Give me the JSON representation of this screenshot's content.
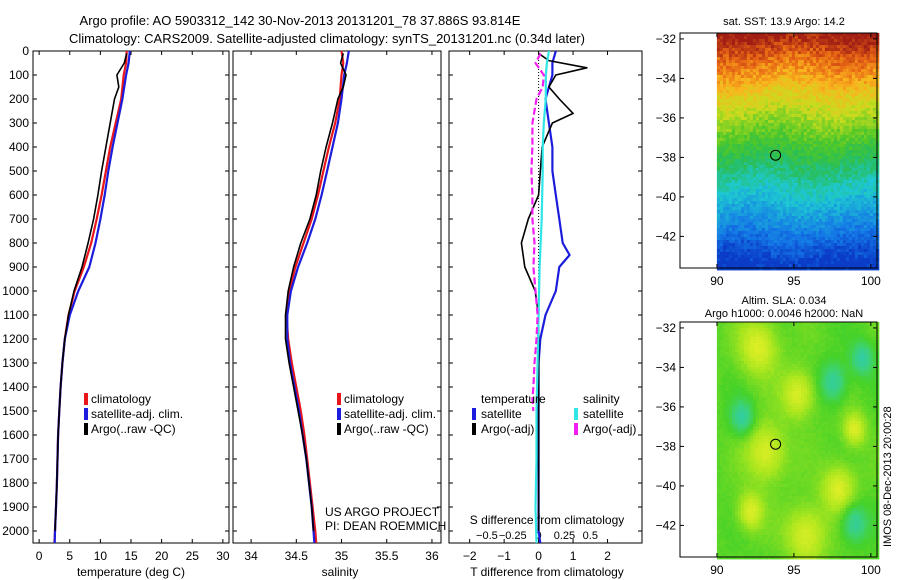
{
  "header": {
    "line1": "Argo profile: AO 5903312_142 30-Nov-2013 20131201_78 37.886S 93.814E",
    "line2": "Climatology: CARS2009. Satellite-adjusted climatology: synTS_20131201.nc (0.34d later)"
  },
  "credit": {
    "line1": "US ARGO PROJECT",
    "line2": "PI: DEAN ROEMMICH"
  },
  "imos_stamp": "IMOS 08-Dec-2013 20:00:28",
  "colors": {
    "climatology": "#e8151b",
    "satellite": "#1c1cdc",
    "argo": "#000000",
    "satellite_salinity": "#2ee6e6",
    "argo_salinity": "#f01ef0"
  },
  "chart_data": [
    {
      "type": "line",
      "name": "temperature-profile",
      "xlabel": "temperature (deg C)",
      "ylabel": "",
      "xlim": [
        -1,
        31
      ],
      "ylim": [
        2050,
        0
      ],
      "xticks": [
        0,
        5,
        10,
        15,
        20,
        25,
        30
      ],
      "yticks": [
        0,
        100,
        200,
        300,
        400,
        500,
        600,
        700,
        800,
        900,
        1000,
        1100,
        1200,
        1300,
        1400,
        1500,
        1600,
        1700,
        1800,
        1900,
        2000
      ],
      "legend": [
        "climatology",
        "satellite-adj. clim.",
        "Argo(..raw -QC)"
      ],
      "legend_position": "lower-right",
      "series": [
        {
          "name": "climatology",
          "color": "#e8151b",
          "points": [
            [
              14.3,
              0
            ],
            [
              14.2,
              50
            ],
            [
              13.8,
              100
            ],
            [
              13.4,
              200
            ],
            [
              12.5,
              300
            ],
            [
              11.6,
              400
            ],
            [
              10.9,
              500
            ],
            [
              10.2,
              600
            ],
            [
              9.4,
              700
            ],
            [
              8.5,
              800
            ],
            [
              7.3,
              900
            ],
            [
              5.8,
              1000
            ],
            [
              4.8,
              1100
            ],
            [
              4.2,
              1200
            ],
            [
              3.8,
              1300
            ],
            [
              3.5,
              1400
            ],
            [
              3.3,
              1500
            ],
            [
              3.1,
              1600
            ],
            [
              3.0,
              1700
            ],
            [
              2.9,
              1800
            ],
            [
              2.75,
              1900
            ],
            [
              2.6,
              2000
            ],
            [
              2.5,
              2050
            ]
          ]
        },
        {
          "name": "satellite-adj. clim.",
          "color": "#1c1cdc",
          "points": [
            [
              14.8,
              0
            ],
            [
              14.6,
              50
            ],
            [
              14.2,
              100
            ],
            [
              13.6,
              200
            ],
            [
              12.8,
              300
            ],
            [
              12.0,
              400
            ],
            [
              11.3,
              500
            ],
            [
              10.7,
              600
            ],
            [
              10.0,
              700
            ],
            [
              9.2,
              800
            ],
            [
              8.2,
              900
            ],
            [
              6.4,
              1000
            ],
            [
              5.0,
              1100
            ],
            [
              4.2,
              1200
            ],
            [
              3.8,
              1300
            ],
            [
              3.5,
              1400
            ],
            [
              3.3,
              1500
            ],
            [
              3.1,
              1600
            ],
            [
              3.0,
              1700
            ],
            [
              2.9,
              1800
            ],
            [
              2.75,
              1900
            ],
            [
              2.6,
              2000
            ],
            [
              2.55,
              2050
            ]
          ]
        },
        {
          "name": "Argo(..raw -QC)",
          "color": "#000000",
          "points": [
            [
              14.3,
              10
            ],
            [
              13.9,
              50
            ],
            [
              12.7,
              100
            ],
            [
              13.0,
              150
            ],
            [
              12.3,
              200
            ],
            [
              11.6,
              300
            ],
            [
              10.9,
              400
            ],
            [
              10.2,
              500
            ],
            [
              9.6,
              600
            ],
            [
              8.9,
              700
            ],
            [
              8.0,
              800
            ],
            [
              7.0,
              900
            ],
            [
              5.7,
              1000
            ],
            [
              4.8,
              1100
            ],
            [
              4.2,
              1200
            ],
            [
              3.8,
              1300
            ],
            [
              3.5,
              1400
            ],
            [
              3.3,
              1500
            ],
            [
              3.1,
              1600
            ],
            [
              3.0,
              1700
            ],
            [
              2.9,
              1800
            ],
            [
              2.75,
              1900
            ],
            [
              2.6,
              2000
            ]
          ]
        }
      ]
    },
    {
      "type": "line",
      "name": "salinity-profile",
      "xlabel": "salinity",
      "ylabel": "",
      "xlim": [
        33.8,
        36.1
      ],
      "ylim": [
        2050,
        0
      ],
      "xticks": [
        34,
        34.5,
        35,
        35.5,
        36
      ],
      "legend": [
        "climatology",
        "satellite-adj. clim.",
        "Argo(..raw -QC)"
      ],
      "legend_position": "lower-right",
      "series": [
        {
          "name": "climatology",
          "color": "#e8151b",
          "points": [
            [
              35.0,
              0
            ],
            [
              35.02,
              50
            ],
            [
              35.0,
              100
            ],
            [
              34.98,
              200
            ],
            [
              34.93,
              300
            ],
            [
              34.86,
              400
            ],
            [
              34.8,
              500
            ],
            [
              34.74,
              600
            ],
            [
              34.67,
              700
            ],
            [
              34.58,
              800
            ],
            [
              34.49,
              900
            ],
            [
              34.42,
              1000
            ],
            [
              34.39,
              1100
            ],
            [
              34.41,
              1200
            ],
            [
              34.45,
              1300
            ],
            [
              34.5,
              1400
            ],
            [
              34.55,
              1500
            ],
            [
              34.59,
              1600
            ],
            [
              34.62,
              1700
            ],
            [
              34.65,
              1800
            ],
            [
              34.68,
              1900
            ],
            [
              34.71,
              2000
            ],
            [
              34.72,
              2050
            ]
          ]
        },
        {
          "name": "satellite-adj. clim.",
          "color": "#1c1cdc",
          "points": [
            [
              35.08,
              0
            ],
            [
              35.06,
              50
            ],
            [
              35.03,
              100
            ],
            [
              35.0,
              200
            ],
            [
              34.96,
              300
            ],
            [
              34.9,
              400
            ],
            [
              34.84,
              500
            ],
            [
              34.78,
              600
            ],
            [
              34.71,
              700
            ],
            [
              34.62,
              800
            ],
            [
              34.52,
              900
            ],
            [
              34.44,
              1000
            ],
            [
              34.4,
              1100
            ],
            [
              34.4,
              1200
            ],
            [
              34.43,
              1300
            ],
            [
              34.48,
              1400
            ],
            [
              34.53,
              1500
            ],
            [
              34.57,
              1600
            ],
            [
              34.61,
              1700
            ],
            [
              34.64,
              1800
            ],
            [
              34.67,
              1900
            ],
            [
              34.69,
              2000
            ],
            [
              34.7,
              2050
            ]
          ]
        },
        {
          "name": "Argo(..raw -QC)",
          "color": "#000000",
          "points": [
            [
              35.02,
              10
            ],
            [
              34.99,
              50
            ],
            [
              35.05,
              100
            ],
            [
              35.02,
              150
            ],
            [
              34.96,
              200
            ],
            [
              34.9,
              300
            ],
            [
              34.83,
              400
            ],
            [
              34.77,
              500
            ],
            [
              34.72,
              600
            ],
            [
              34.65,
              700
            ],
            [
              34.55,
              800
            ],
            [
              34.47,
              900
            ],
            [
              34.41,
              1000
            ],
            [
              34.38,
              1100
            ],
            [
              34.38,
              1200
            ],
            [
              34.42,
              1300
            ],
            [
              34.47,
              1400
            ],
            [
              34.52,
              1500
            ],
            [
              34.57,
              1600
            ],
            [
              34.61,
              1700
            ],
            [
              34.64,
              1800
            ],
            [
              34.67,
              1900
            ],
            [
              34.69,
              2000
            ]
          ]
        }
      ]
    },
    {
      "type": "line",
      "name": "difference-profile",
      "xlabel": "T difference from climatology",
      "top_axis_label": "S difference from climatology",
      "xlim": [
        -2.6,
        3.0
      ],
      "ylim": [
        2050,
        0
      ],
      "xticks": [
        -2,
        -1,
        0,
        1,
        2
      ],
      "xtick_labels": [
        "−2",
        "−1",
        "0",
        "1",
        "2"
      ],
      "sticks": [
        -0.5,
        -0.25,
        0,
        0.25,
        0.5
      ],
      "stick_labels": [
        "−0.5",
        "−0.25",
        "0",
        "0.25",
        "0.5"
      ],
      "s_to_t_scale": 3.0,
      "legend_groups": [
        {
          "title": "temperature",
          "entries": [
            {
              "label": "satellite",
              "color": "#1c1cdc"
            },
            {
              "label": "Argo(-adj)",
              "color": "#000000"
            }
          ]
        },
        {
          "title": "salinity",
          "entries": [
            {
              "label": "satellite",
              "color": "#2ee6e6"
            },
            {
              "label": "Argo(-adj)",
              "color": "#f01ef0"
            }
          ]
        }
      ],
      "series": [
        {
          "name": "T satellite",
          "color": "#1c1cdc",
          "points": [
            [
              0.5,
              0
            ],
            [
              0.4,
              50
            ],
            [
              0.4,
              100
            ],
            [
              0.2,
              200
            ],
            [
              0.3,
              300
            ],
            [
              0.4,
              400
            ],
            [
              0.4,
              500
            ],
            [
              0.5,
              600
            ],
            [
              0.6,
              700
            ],
            [
              0.7,
              800
            ],
            [
              0.9,
              850
            ],
            [
              0.6,
              900
            ],
            [
              0.5,
              1000
            ],
            [
              0.2,
              1100
            ],
            [
              0.05,
              1200
            ],
            [
              0.0,
              1300
            ],
            [
              0.0,
              1500
            ],
            [
              0.0,
              1800
            ],
            [
              0.0,
              2000
            ],
            [
              0.05,
              2050
            ]
          ]
        },
        {
          "name": "T Argo(-adj)",
          "color": "#000000",
          "points": [
            [
              0.0,
              10
            ],
            [
              0.3,
              40
            ],
            [
              1.4,
              70
            ],
            [
              0.5,
              100
            ],
            [
              0.3,
              150
            ],
            [
              0.6,
              200
            ],
            [
              1.0,
              260
            ],
            [
              0.4,
              300
            ],
            [
              0.1,
              400
            ],
            [
              0.0,
              600
            ],
            [
              -0.3,
              700
            ],
            [
              -0.5,
              800
            ],
            [
              -0.4,
              900
            ],
            [
              -0.1,
              1000
            ],
            [
              0.0,
              1100
            ],
            [
              0.0,
              1300
            ],
            [
              0.0,
              1600
            ],
            [
              0.0,
              2000
            ]
          ]
        },
        {
          "name": "S satellite",
          "color": "#2ee6e6",
          "sunits": true,
          "points": [
            [
              0.1,
              0
            ],
            [
              0.08,
              50
            ],
            [
              0.07,
              100
            ],
            [
              0.07,
              200
            ],
            [
              0.05,
              300
            ],
            [
              0.04,
              400
            ],
            [
              0.04,
              500
            ],
            [
              0.03,
              700
            ],
            [
              0.01,
              900
            ],
            [
              0.0,
              1100
            ],
            [
              -0.01,
              1300
            ],
            [
              -0.02,
              1500
            ],
            [
              -0.02,
              1700
            ],
            [
              -0.03,
              1900
            ],
            [
              -0.02,
              2050
            ]
          ]
        },
        {
          "name": "S Argo(-adj)",
          "color": "#f01ef0",
          "sunits": true,
          "points": [
            [
              0.02,
              10
            ],
            [
              -0.03,
              50
            ],
            [
              0.05,
              100
            ],
            [
              0.04,
              150
            ],
            [
              -0.02,
              200
            ],
            [
              -0.06,
              300
            ],
            [
              -0.06,
              400
            ],
            [
              -0.07,
              500
            ],
            [
              -0.06,
              600
            ],
            [
              -0.06,
              700
            ],
            [
              -0.04,
              800
            ],
            [
              -0.05,
              900
            ],
            [
              -0.03,
              1000
            ],
            [
              -0.01,
              1100
            ],
            [
              -0.02,
              1200
            ],
            [
              -0.04,
              1300
            ],
            [
              -0.05,
              1400
            ],
            [
              -0.06,
              1450
            ],
            [
              -0.05,
              1500
            ]
          ]
        }
      ]
    },
    {
      "type": "heatmap",
      "name": "sst-map",
      "title": "sat. SST: 13.9 Argo: 14.2",
      "xlim": [
        87.6,
        100.4
      ],
      "ylim": [
        -43.6,
        -31.7
      ],
      "xticks": [
        90,
        95,
        100
      ],
      "yticks": [
        -32,
        -34,
        -36,
        -38,
        -40,
        -42
      ],
      "data_x_start": 90,
      "marker": [
        93.814,
        -37.886
      ],
      "legend_position": "none"
    },
    {
      "type": "heatmap",
      "name": "sla-map",
      "title_line1": "Altim. SLA: 0.034",
      "title_line2": "Argo h1000: 0.0046 h2000: NaN",
      "xlim": [
        87.6,
        100.4
      ],
      "ylim": [
        -43.6,
        -31.7
      ],
      "xticks": [
        90,
        95,
        100
      ],
      "yticks": [
        -32,
        -34,
        -36,
        -38,
        -40,
        -42
      ],
      "data_x_start": 90,
      "marker": [
        93.814,
        -37.886
      ],
      "legend_position": "none"
    }
  ]
}
